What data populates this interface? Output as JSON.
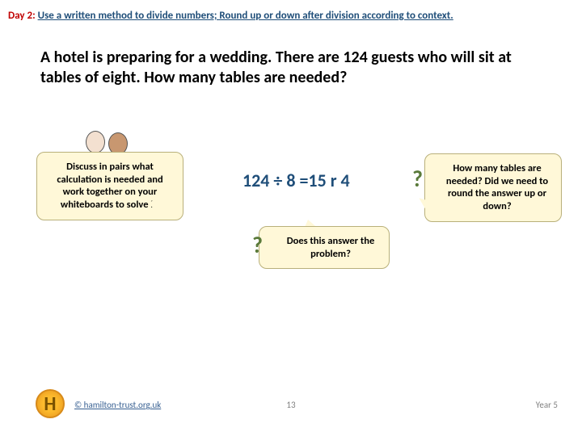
{
  "header": {
    "day": "Day 2:",
    "objective": "Use a written method to divide numbers; Round up or down after division according to context."
  },
  "question_text": "A hotel is preparing for a wedding. There are 124 guests who will sit at tables of eight. How many tables are needed?",
  "bubble_discuss": "Discuss in pairs what calculation is needed and work together on your whiteboards to solve it.",
  "equation": "124 ÷ 8 =15 r 4",
  "bubble_does": "Does this answer the problem?",
  "bubble_howmany": "How many tables are needed? Did we need to round the answer up or down?",
  "logo_letter": "H",
  "copyright": "© hamilton-trust.org.uk",
  "page_number": "13",
  "year": "Year 5",
  "colors": {
    "day_color": "#c00000",
    "objective_color": "#1f4e79",
    "equation_color": "#1f4e79",
    "bubble_bg": "#fff8d8",
    "bubble_border": "#b9b07a",
    "qmark_color": "#5a7a3a"
  }
}
